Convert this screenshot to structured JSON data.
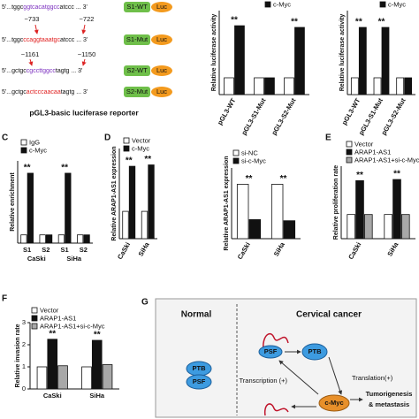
{
  "sequences": [
    {
      "prefix": "5'...tggc",
      "site": "ggtcacatggcc",
      "suffix": "atccc ... 3'",
      "box": "S1-WT",
      "luc": "Luc"
    },
    {
      "prefix": "5'...tggc",
      "site": "ccaggtaaatgc",
      "suffix": "atccc ... 3'",
      "box": "S1-Mut",
      "luc": "Luc"
    },
    {
      "prefix": "5'...gctgc",
      "site": "cgccttggcc",
      "suffix": "tagtg ... 3'",
      "box": "S2-WT",
      "luc": "Luc"
    },
    {
      "prefix": "5'...gctgc",
      "site": "actcccaacaa",
      "suffix": "tagtg ... 3'",
      "box": "S2-Mut",
      "luc": "Luc"
    }
  ],
  "positions": [
    [
      "−733",
      "−722"
    ],
    [
      "−1161",
      "−1150"
    ]
  ],
  "reporter": "pGL3-basic luciferase reporter",
  "chart_data": [
    {
      "type": "bar",
      "ylabel": "Relative luciferase activity",
      "categories": [
        "pGL3-WT",
        "pGL3-S1-Mut",
        "pGL3-S2-Mut"
      ],
      "series": [
        {
          "color": "#ffffff",
          "values": [
            1,
            1,
            1
          ]
        },
        {
          "name": "c-Myc",
          "color": "#111111",
          "values": [
            4.1,
            1,
            4.0
          ]
        }
      ],
      "ylim": [
        0,
        5
      ],
      "stars": [
        "**",
        null,
        "**"
      ]
    },
    {
      "type": "bar",
      "ylabel": "Relative luciferase activity",
      "categories": [
        "pGL3-WT",
        "pGL3-S1-Mut",
        "pGL3-S2-Mut"
      ],
      "series": [
        {
          "color": "#ffffff",
          "values": [
            1,
            1,
            1
          ]
        },
        {
          "name": "c-Myc",
          "color": "#111111",
          "values": [
            4.0,
            4.0,
            1
          ]
        }
      ],
      "ylim": [
        0,
        5
      ],
      "stars": [
        "**",
        "**",
        null
      ]
    },
    {
      "type": "bar",
      "label": "C",
      "ylabel": "Relative enrichment",
      "categories": [
        "S1",
        "S2",
        "S1",
        "S2"
      ],
      "groups": [
        "CaSki",
        "SiHa"
      ],
      "series": [
        {
          "name": "IgG",
          "color": "#ffffff",
          "values": [
            1,
            1,
            1,
            1
          ]
        },
        {
          "name": "c-Myc",
          "color": "#111111",
          "values": [
            8.5,
            1,
            8.5,
            1
          ]
        }
      ],
      "ylim": [
        0,
        10
      ],
      "stars": [
        "**",
        null,
        "**",
        null
      ]
    },
    {
      "type": "bar",
      "label": "D",
      "ylabel": "Relative ARAP1-AS1 expression",
      "categories": [
        "CaSki",
        "SiHa"
      ],
      "series": [
        {
          "name": "Vector",
          "color": "#ffffff",
          "values": [
            1,
            1
          ]
        },
        {
          "name": "c-Myc",
          "color": "#111111",
          "values": [
            2.65,
            2.7
          ]
        }
      ],
      "ylim": [
        0,
        3.3
      ],
      "stars": [
        "**",
        "**"
      ]
    },
    {
      "type": "bar",
      "ylabel": "Relative ARAP1-AS1 expression",
      "categories": [
        "CaSki",
        "SiHa"
      ],
      "series": [
        {
          "name": "si-NC",
          "color": "#ffffff",
          "values": [
            1,
            1
          ]
        },
        {
          "name": "si-c-Myc",
          "color": "#111111",
          "values": [
            0.35,
            0.33
          ]
        }
      ],
      "ylim": [
        0,
        1.3
      ],
      "stars": [
        "**",
        "**"
      ]
    },
    {
      "type": "bar",
      "label": "E",
      "ylabel": "Relative proliferation rate",
      "categories": [
        "CaSki",
        "SiHa"
      ],
      "series": [
        {
          "name": "Vector",
          "color": "#ffffff",
          "values": [
            1,
            1
          ]
        },
        {
          "name": "ARAP1-AS1",
          "color": "#111111",
          "values": [
            2.4,
            2.45
          ]
        },
        {
          "name": "ARAP1-AS1+si-c-Myc",
          "color": "#a8a8a8",
          "values": [
            1.0,
            1.0
          ]
        }
      ],
      "ylim": [
        0,
        3
      ],
      "stars": [
        "**",
        "**"
      ]
    },
    {
      "type": "bar",
      "label": "F",
      "ylabel": "Relative invasion rate",
      "categories": [
        "CaSki",
        "SiHa"
      ],
      "series": [
        {
          "name": "Vector",
          "color": "#ffffff",
          "values": [
            1,
            1
          ]
        },
        {
          "name": "ARAP1-AS1",
          "color": "#111111",
          "values": [
            2.25,
            2.2
          ]
        },
        {
          "name": "ARAP1-AS1+si-c-Myc",
          "color": "#a8a8a8",
          "values": [
            1.05,
            1.1
          ]
        }
      ],
      "ylim": [
        0,
        3
      ],
      "yticks": [
        0,
        1,
        2,
        3
      ],
      "stars": [
        "**",
        "**"
      ]
    }
  ],
  "diagram": {
    "label": "G",
    "left": "Normal",
    "right": "Cervical cancer",
    "ptb": "PTB",
    "psf": "PSF",
    "translation": "Translation(+)",
    "transcription": "Transcription (+)",
    "cmyc": "c-Myc",
    "outcome": [
      "Tumorigenesis",
      "& metastasis"
    ]
  }
}
